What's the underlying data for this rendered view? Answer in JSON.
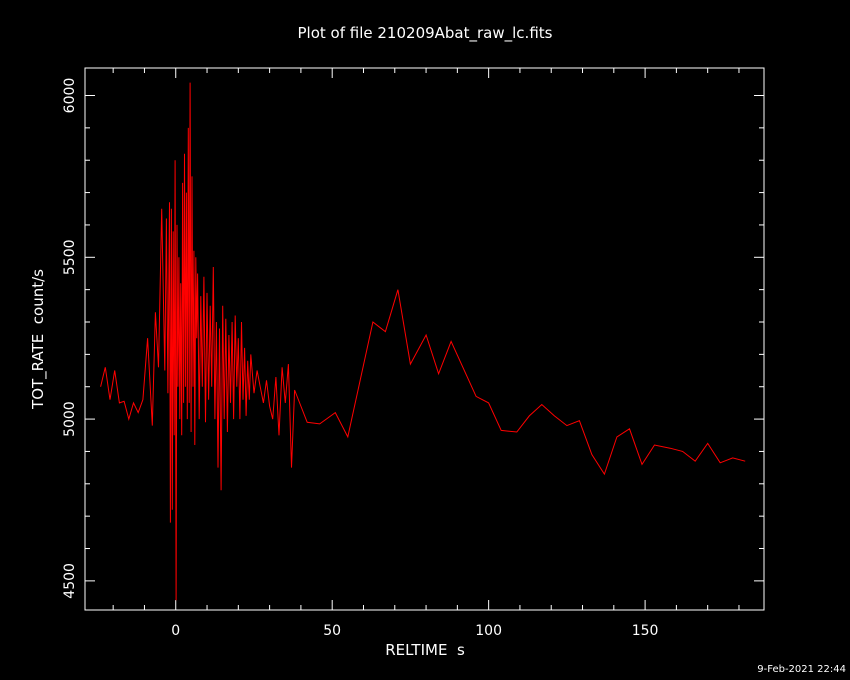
{
  "chart_data": {
    "type": "line",
    "title": "Plot of file 210209Abat_raw_lc.fits",
    "xlabel": "RELTIME  s",
    "ylabel": "TOT_RATE  count/s",
    "xlim": [
      -29,
      188
    ],
    "ylim": [
      4410,
      6085
    ],
    "xticks": [
      0,
      50,
      100,
      150
    ],
    "yticks": [
      4500,
      5000,
      5500,
      6000
    ],
    "grid": false,
    "series": [
      {
        "color": "#ff0000",
        "x": [
          -24,
          -22.5,
          -21,
          -19.5,
          -18,
          -16.5,
          -15,
          -13.5,
          -12,
          -10.5,
          -9,
          -7.5,
          -6.5,
          -5.5,
          -4.5,
          -3.5,
          -3,
          -2.5,
          -2,
          -1.7,
          -1.4,
          -1.1,
          -0.8,
          -0.5,
          -0.2,
          0.1,
          0.4,
          0.7,
          1,
          1.3,
          1.6,
          1.9,
          2.2,
          2.5,
          2.8,
          3.1,
          3.4,
          3.7,
          4,
          4.3,
          4.6,
          4.9,
          5.2,
          5.5,
          5.8,
          6.1,
          6.4,
          6.7,
          7,
          7.5,
          8,
          8.5,
          9,
          9.5,
          10,
          10.5,
          11,
          11.5,
          12,
          12.5,
          13,
          13.5,
          14,
          14.5,
          15,
          15.5,
          16,
          16.5,
          17,
          17.5,
          18,
          18.5,
          19,
          19.5,
          20,
          20.5,
          21,
          21.5,
          22,
          22.5,
          23,
          23.5,
          24,
          25,
          26,
          27,
          28,
          29,
          30,
          31,
          32,
          33,
          34,
          35,
          36,
          37,
          38,
          42,
          46,
          51,
          55,
          63,
          67,
          71,
          75,
          80,
          84,
          88,
          96,
          100,
          104,
          109,
          113,
          117,
          121,
          125,
          129,
          133,
          137,
          141,
          145,
          149,
          153,
          158,
          162,
          166,
          170,
          174,
          178,
          182
        ],
        "y": [
          5100,
          5160,
          5060,
          5150,
          5050,
          5055,
          5000,
          5050,
          5020,
          5060,
          5250,
          4980,
          5330,
          5160,
          5650,
          5150,
          5620,
          5080,
          5670,
          4680,
          5650,
          4720,
          5580,
          4950,
          5800,
          4440,
          5600,
          5100,
          5500,
          5000,
          5420,
          4950,
          5730,
          5050,
          5820,
          5100,
          5700,
          5000,
          5900,
          5050,
          6040,
          4960,
          5750,
          5100,
          5520,
          4920,
          5500,
          5250,
          5450,
          5000,
          5380,
          5100,
          5440,
          4990,
          5390,
          5060,
          5350,
          5100,
          5470,
          5000,
          5300,
          4850,
          5280,
          4780,
          5350,
          5000,
          5310,
          4960,
          5260,
          5050,
          5300,
          5000,
          5320,
          5100,
          5250,
          5000,
          5300,
          5060,
          5220,
          5010,
          5180,
          5060,
          5200,
          5080,
          5150,
          5100,
          5050,
          5120,
          5040,
          5000,
          5130,
          4950,
          5160,
          5050,
          5170,
          4850,
          5090,
          4990,
          4985,
          5020,
          4945,
          5300,
          5270,
          5400,
          5170,
          5260,
          5140,
          5240,
          5070,
          5050,
          4965,
          4960,
          5010,
          5045,
          5010,
          4980,
          4995,
          4890,
          4830,
          4945,
          4970,
          4860,
          4920,
          4910,
          4900,
          4870,
          4925,
          4865,
          4880,
          4870
        ]
      }
    ]
  },
  "footer": {
    "timestamp": "9-Feb-2021 22:44"
  }
}
